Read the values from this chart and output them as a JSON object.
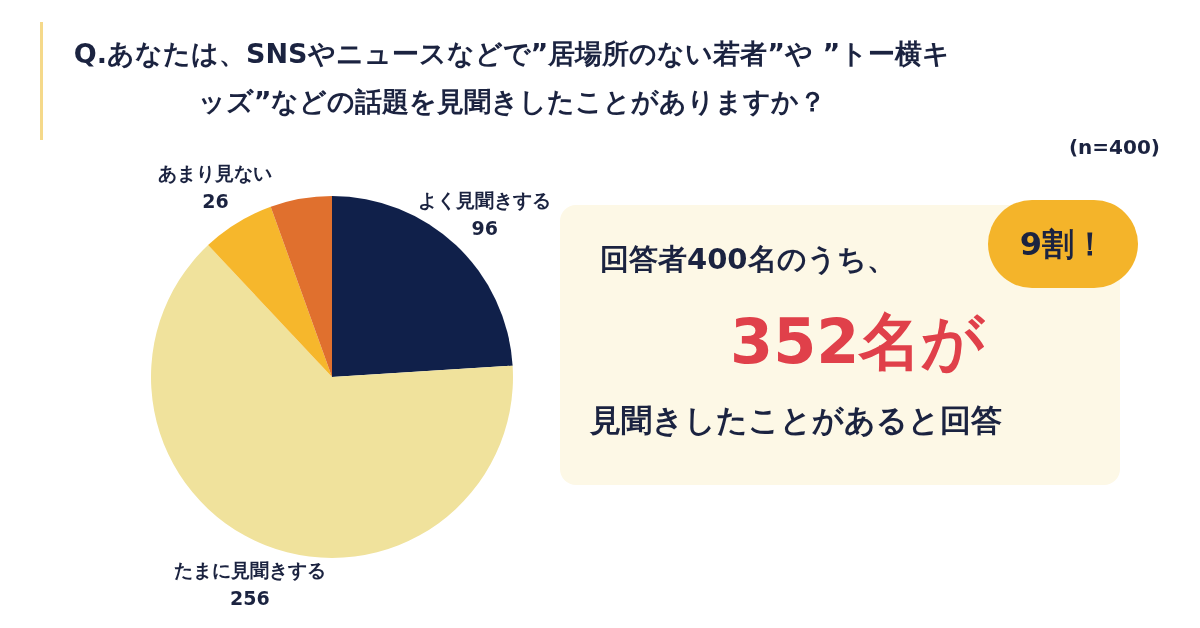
{
  "chart_data": {
    "type": "pie",
    "title": "Q.あなたは、SNSやニュースなどで”居場所のない若者”や ”トー横キッズ”などの話題を見聞きしたことがありますか？",
    "categories": [
      "よく見聞きする",
      "たまに見聞きする",
      "あまり見ない",
      null
    ],
    "values": [
      96,
      256,
      26,
      22
    ],
    "value_labels": [
      "96",
      "256",
      "26",
      null
    ],
    "colors": [
      "#10204a",
      "#f0e29c",
      "#f6b72c",
      "#e0702e"
    ],
    "annotations": [
      "(n=400)",
      "回答者400名のうち、",
      "9割！",
      "352名が",
      "見聞きしたことがあると回答"
    ]
  }
}
